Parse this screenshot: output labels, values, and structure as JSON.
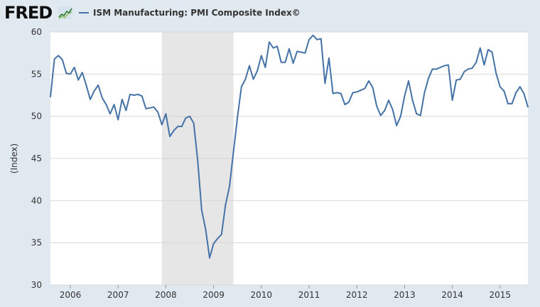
{
  "header": {
    "logo_text": "FRED",
    "legend_label": "ISM Manufacturing: PMI Composite Index©",
    "legend_color": "#4572a7"
  },
  "chart_data": {
    "type": "line",
    "title": "",
    "xlabel": "",
    "ylabel": "(Index)",
    "ylim": [
      30,
      60
    ],
    "yticks": [
      30,
      35,
      40,
      45,
      50,
      55,
      60
    ],
    "xlim": [
      "2005-08",
      "2015-08"
    ],
    "xticks": [
      "2006",
      "2007",
      "2008",
      "2009",
      "2010",
      "2011",
      "2012",
      "2013",
      "2014",
      "2015"
    ],
    "grid": "horizontal",
    "legend": "top-left",
    "line_color": "#4572a7",
    "plot_background": "#ffffff",
    "recession_shading": [
      {
        "start": "2007-12",
        "end": "2009-06",
        "color": "#e6e6e6"
      }
    ],
    "series": [
      {
        "name": "ISM Manufacturing: PMI Composite Index©",
        "x": [
          "2005-08",
          "2005-09",
          "2005-10",
          "2005-11",
          "2005-12",
          "2006-01",
          "2006-02",
          "2006-03",
          "2006-04",
          "2006-05",
          "2006-06",
          "2006-07",
          "2006-08",
          "2006-09",
          "2006-10",
          "2006-11",
          "2006-12",
          "2007-01",
          "2007-02",
          "2007-03",
          "2007-04",
          "2007-05",
          "2007-06",
          "2007-07",
          "2007-08",
          "2007-09",
          "2007-10",
          "2007-11",
          "2007-12",
          "2008-01",
          "2008-02",
          "2008-03",
          "2008-04",
          "2008-05",
          "2008-06",
          "2008-07",
          "2008-08",
          "2008-09",
          "2008-10",
          "2008-11",
          "2008-12",
          "2009-01",
          "2009-02",
          "2009-03",
          "2009-04",
          "2009-05",
          "2009-06",
          "2009-07",
          "2009-08",
          "2009-09",
          "2009-10",
          "2009-11",
          "2009-12",
          "2010-01",
          "2010-02",
          "2010-03",
          "2010-04",
          "2010-05",
          "2010-06",
          "2010-07",
          "2010-08",
          "2010-09",
          "2010-10",
          "2010-11",
          "2010-12",
          "2011-01",
          "2011-02",
          "2011-03",
          "2011-04",
          "2011-05",
          "2011-06",
          "2011-07",
          "2011-08",
          "2011-09",
          "2011-10",
          "2011-11",
          "2011-12",
          "2012-01",
          "2012-02",
          "2012-03",
          "2012-04",
          "2012-05",
          "2012-06",
          "2012-07",
          "2012-08",
          "2012-09",
          "2012-10",
          "2012-11",
          "2012-12",
          "2013-01",
          "2013-02",
          "2013-03",
          "2013-04",
          "2013-05",
          "2013-06",
          "2013-07",
          "2013-08",
          "2013-09",
          "2013-10",
          "2013-11",
          "2013-12",
          "2014-01",
          "2014-02",
          "2014-03",
          "2014-04",
          "2014-05",
          "2014-06",
          "2014-07",
          "2014-08",
          "2014-09",
          "2014-10",
          "2014-11",
          "2014-12",
          "2015-01",
          "2015-02",
          "2015-03",
          "2015-04",
          "2015-05",
          "2015-06",
          "2015-07",
          "2015-08"
        ],
        "values": [
          52.3,
          56.8,
          57.2,
          56.7,
          55.1,
          55.0,
          55.8,
          54.3,
          55.2,
          53.7,
          52.0,
          53.0,
          53.7,
          52.2,
          51.4,
          50.3,
          51.4,
          49.6,
          52.0,
          50.7,
          52.6,
          52.5,
          52.6,
          52.4,
          50.9,
          51.0,
          51.1,
          50.5,
          49.0,
          50.3,
          47.6,
          48.3,
          48.8,
          48.8,
          49.8,
          50.0,
          49.2,
          44.8,
          38.9,
          36.6,
          33.2,
          34.9,
          35.5,
          36.0,
          39.5,
          41.7,
          45.8,
          49.9,
          53.5,
          54.4,
          56.0,
          54.4,
          55.4,
          57.2,
          55.8,
          58.8,
          58.1,
          58.3,
          56.4,
          56.4,
          58.0,
          56.3,
          57.7,
          57.6,
          57.5,
          59.1,
          59.6,
          59.1,
          59.2,
          53.9,
          56.9,
          52.7,
          52.8,
          52.7,
          51.4,
          51.7,
          52.8,
          52.9,
          53.1,
          53.3,
          54.2,
          53.4,
          51.2,
          50.1,
          50.7,
          51.9,
          50.8,
          48.9,
          50.0,
          52.4,
          54.2,
          51.9,
          50.3,
          50.1,
          52.8,
          54.5,
          55.6,
          55.6,
          55.8,
          56.0,
          56.1,
          51.9,
          54.3,
          54.4,
          55.3,
          55.6,
          55.7,
          56.4,
          58.1,
          56.1,
          57.9,
          57.6,
          55.1,
          53.5,
          53.0,
          51.5,
          51.5,
          52.8,
          53.5,
          52.7,
          51.1
        ]
      }
    ]
  }
}
